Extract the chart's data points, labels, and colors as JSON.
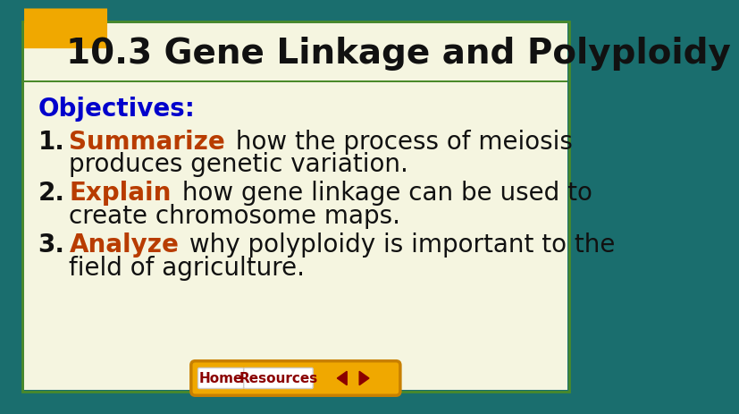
{
  "title": "10.3 Gene Linkage and Polyploidy",
  "title_color": "#111111",
  "title_fontsize": 28,
  "bg_outer": "#1a6e6e",
  "bg_inner_cream": "#f5f5e0",
  "header_bg": "#f5f5e0",
  "green_accent": "#4a8a2a",
  "teal_border": "#1a6e6e",
  "objectives_label": "Objectives:",
  "objectives_color": "#0000cc",
  "objectives_fontsize": 20,
  "items": [
    {
      "number": "1.",
      "keyword": "Summarize",
      "rest_line1": " how the process of meiosis",
      "rest_line2": "produces genetic variation.",
      "keyword_color": "#b83c00",
      "text_color": "#111111"
    },
    {
      "number": "2.",
      "keyword": "Explain",
      "rest_line1": " how gene linkage can be used to",
      "rest_line2": "create chromosome maps.",
      "keyword_color": "#b83c00",
      "text_color": "#111111"
    },
    {
      "number": "3.",
      "keyword": "Analyze",
      "rest_line1": " why polyploidy is important to the",
      "rest_line2": "field of agriculture.",
      "keyword_color": "#b83c00",
      "text_color": "#111111"
    }
  ],
  "item_fontsize": 20,
  "nav_bar_color": "#f0a800",
  "nav_bar_border": "#c88000",
  "nav_button_bg": "#ffffff",
  "nav_button_color": "#8b0000",
  "nav_home": "Home",
  "nav_resources": "Resources",
  "nav_arrow_color": "#8b0000",
  "tab_color": "#f0a800",
  "outer_border_color": "#1a6e6e",
  "inner_border_color": "#4a8a2a"
}
